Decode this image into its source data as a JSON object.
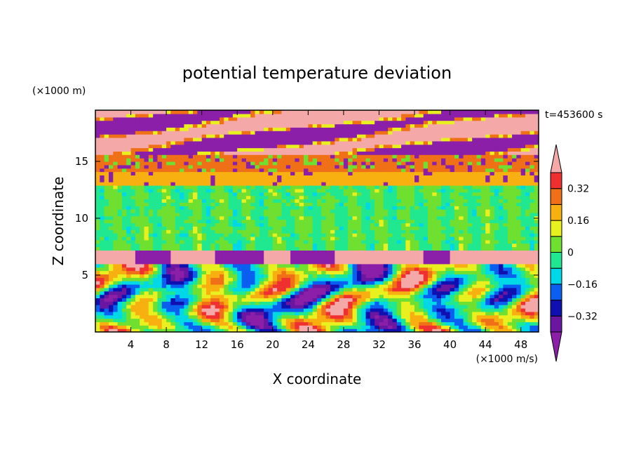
{
  "chart_data": {
    "type": "heatmap",
    "title": "potential temperature deviation",
    "xlabel": "X coordinate",
    "ylabel": "Z coordinate",
    "x_unit": "(×1000 m/s)",
    "y_unit": "(×1000 m)",
    "time_label": "t=453600 s",
    "xlim": [
      0,
      50
    ],
    "ylim": [
      0,
      19.5
    ],
    "x_ticks": [
      4,
      8,
      12,
      16,
      20,
      24,
      28,
      32,
      36,
      40,
      44,
      48
    ],
    "y_ticks": [
      5,
      10,
      15
    ],
    "colorbar": {
      "levels": [
        -0.4,
        -0.32,
        -0.24,
        -0.16,
        -0.08,
        0,
        0.08,
        0.16,
        0.24,
        0.32,
        0.4
      ],
      "labeled_levels": [
        "0.32",
        "0.16",
        "0",
        "−0.16",
        "−0.32"
      ],
      "colors": [
        "#8b1fa8",
        "#6a16a0",
        "#1010b0",
        "#0a5ef0",
        "#00d8e8",
        "#20e890",
        "#70e030",
        "#e8f020",
        "#f8b010",
        "#f07018",
        "#f03030",
        "#f4a8a8"
      ],
      "extend": "both"
    },
    "layers": [
      {
        "z_range": [
          15.5,
          19.5
        ],
        "description_value": "alternating",
        "dominant": [
          0.45,
          -0.45
        ]
      },
      {
        "z_range": [
          14.2,
          15.5
        ],
        "dominant": [
          0.3
        ]
      },
      {
        "z_range": [
          13.0,
          14.2
        ],
        "dominant": [
          0.2
        ]
      },
      {
        "z_range": [
          7.3,
          13.0
        ],
        "dominant": [
          0.0,
          -0.05
        ]
      },
      {
        "z_range": [
          6.0,
          7.3
        ],
        "dominant": [
          0.45
        ]
      },
      {
        "z_range": [
          0,
          6.0
        ],
        "dominant": [
          -0.4,
          0.4
        ]
      }
    ]
  }
}
